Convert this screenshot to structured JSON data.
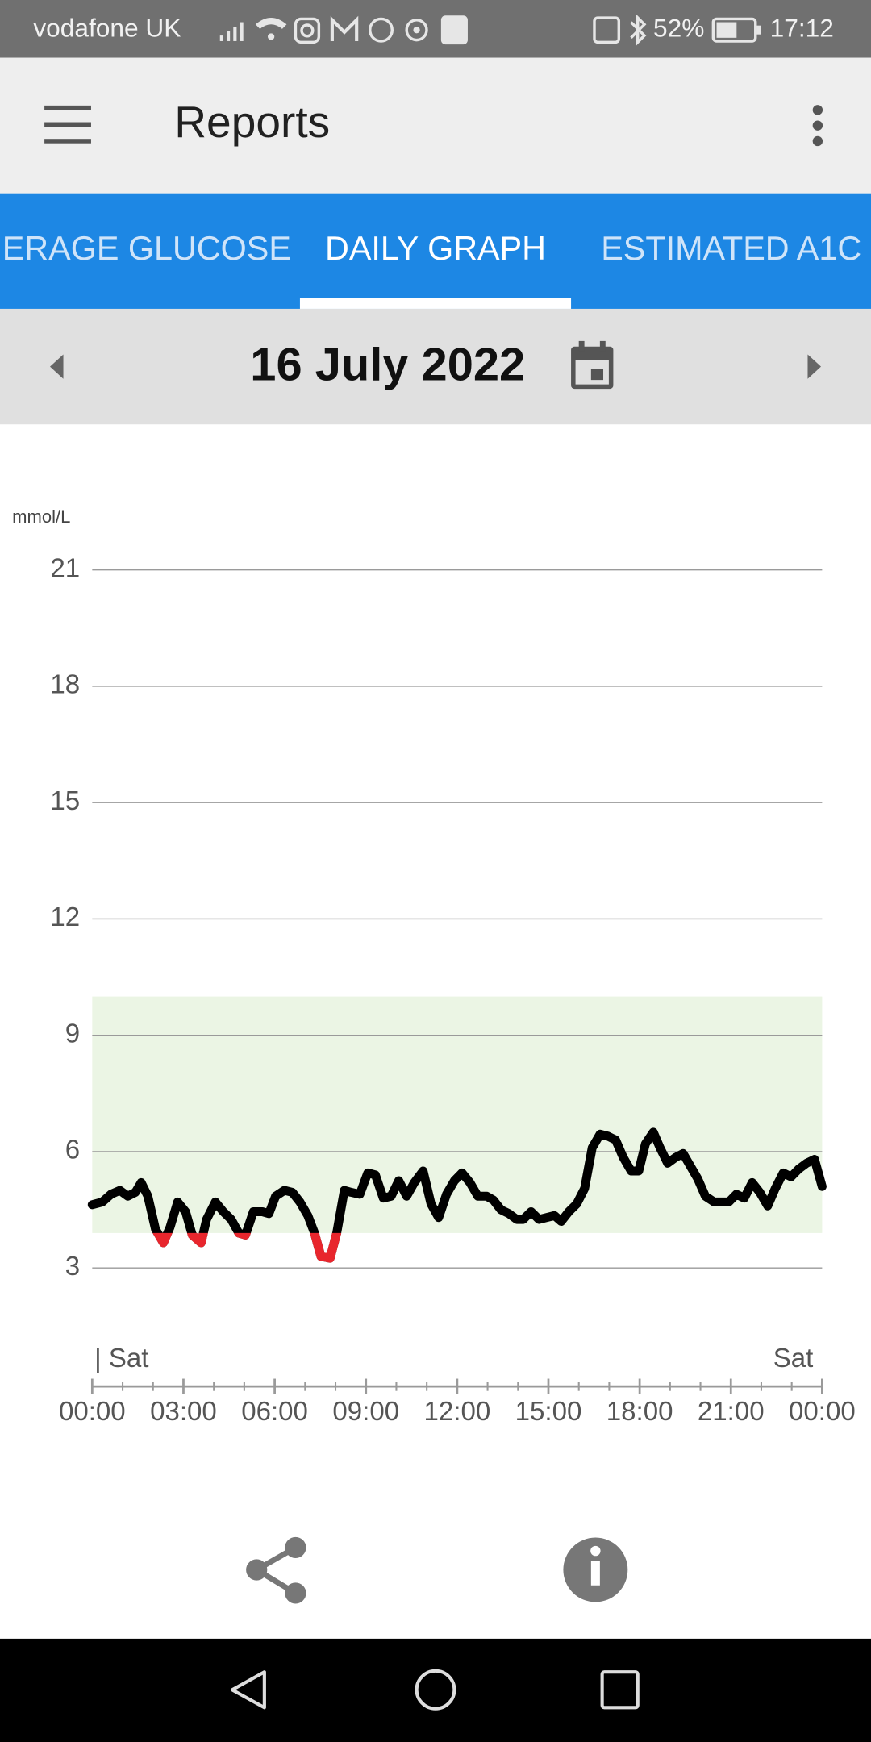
{
  "status_bar": {
    "carrier": "vodafone UK",
    "battery": "52%",
    "time": "17:12"
  },
  "app_bar": {
    "title": "Reports"
  },
  "tabs": [
    "ERAGE GLUCOSE",
    "DAILY GRAPH",
    "ESTIMATED A1C"
  ],
  "date_nav": {
    "date": "16 July 2022"
  },
  "chart_data": {
    "type": "line",
    "y_label": "mmol/L",
    "day_labels": [
      "| Sat",
      "Sat"
    ],
    "xlim": [
      0,
      24
    ],
    "xticks": [
      {
        "value": 0,
        "label": "00:00"
      },
      {
        "value": 3,
        "label": "03:00"
      },
      {
        "value": 6,
        "label": "06:00"
      },
      {
        "value": 9,
        "label": "09:00"
      },
      {
        "value": 12,
        "label": "12:00"
      },
      {
        "value": 15,
        "label": "15:00"
      },
      {
        "value": 18,
        "label": "18:00"
      },
      {
        "value": 21,
        "label": "21:00"
      },
      {
        "value": 24,
        "label": "00:00"
      }
    ],
    "xminorticks": [
      1,
      2,
      4,
      5,
      7,
      8,
      10,
      11,
      13,
      14,
      16,
      17,
      19,
      20,
      22,
      23
    ],
    "ylim": [
      0,
      21
    ],
    "yticks": [
      3,
      6,
      9,
      12,
      15,
      18,
      21
    ],
    "grid": true,
    "target_range": [
      3.9,
      10
    ],
    "target_color": "#ebf5e4",
    "color": "#000000",
    "low_color": "#e8262d",
    "x": [
      0,
      0.33,
      0.62,
      0.91,
      1.17,
      1.42,
      1.61,
      1.83,
      2.08,
      2.34,
      2.56,
      2.81,
      3.07,
      3.29,
      3.58,
      3.76,
      4.05,
      4.31,
      4.57,
      4.82,
      5.04,
      5.3,
      5.59,
      5.81,
      6.03,
      6.32,
      6.58,
      6.83,
      7.09,
      7.31,
      7.52,
      7.82,
      8.04,
      8.29,
      8.51,
      8.8,
      9.06,
      9.31,
      9.57,
      9.83,
      10.08,
      10.34,
      10.59,
      10.88,
      11.14,
      11.39,
      11.65,
      11.91,
      12.16,
      12.42,
      12.68,
      12.97,
      13.19,
      13.44,
      13.7,
      13.96,
      14.17,
      14.43,
      14.69,
      14.94,
      15.2,
      15.42,
      15.67,
      15.93,
      16.19,
      16.44,
      16.7,
      16.95,
      17.21,
      17.46,
      17.72,
      17.97,
      18.19,
      18.45,
      18.67,
      18.92,
      19.18,
      19.43,
      19.65,
      19.91,
      20.16,
      20.45,
      20.71,
      20.93,
      21.18,
      21.44,
      21.7,
      21.95,
      22.21,
      22.46,
      22.72,
      22.98,
      23.23,
      23.49,
      23.75,
      24
    ],
    "values": [
      4.63,
      4.7,
      4.9,
      5.0,
      4.85,
      4.95,
      5.2,
      4.85,
      4.0,
      3.65,
      4.05,
      4.7,
      4.45,
      3.85,
      3.65,
      4.25,
      4.7,
      4.45,
      4.25,
      3.9,
      3.85,
      4.45,
      4.45,
      4.4,
      4.85,
      5.0,
      4.95,
      4.7,
      4.35,
      3.9,
      3.3,
      3.25,
      3.9,
      5.0,
      4.95,
      4.9,
      5.45,
      5.4,
      4.8,
      4.85,
      5.25,
      4.85,
      5.2,
      5.5,
      4.65,
      4.3,
      4.9,
      5.25,
      5.45,
      5.2,
      4.85,
      4.85,
      4.75,
      4.5,
      4.4,
      4.25,
      4.25,
      4.45,
      4.25,
      4.3,
      4.35,
      4.2,
      4.45,
      4.65,
      5.05,
      6.1,
      6.45,
      6.4,
      6.3,
      5.85,
      5.5,
      5.5,
      6.2,
      6.5,
      6.1,
      5.7,
      5.85,
      5.95,
      5.65,
      5.3,
      4.85,
      4.7,
      4.7,
      4.7,
      4.9,
      4.8,
      5.2,
      4.95,
      4.6,
      5.05,
      5.45,
      5.35,
      5.55,
      5.7,
      5.8,
      5.1
    ]
  }
}
